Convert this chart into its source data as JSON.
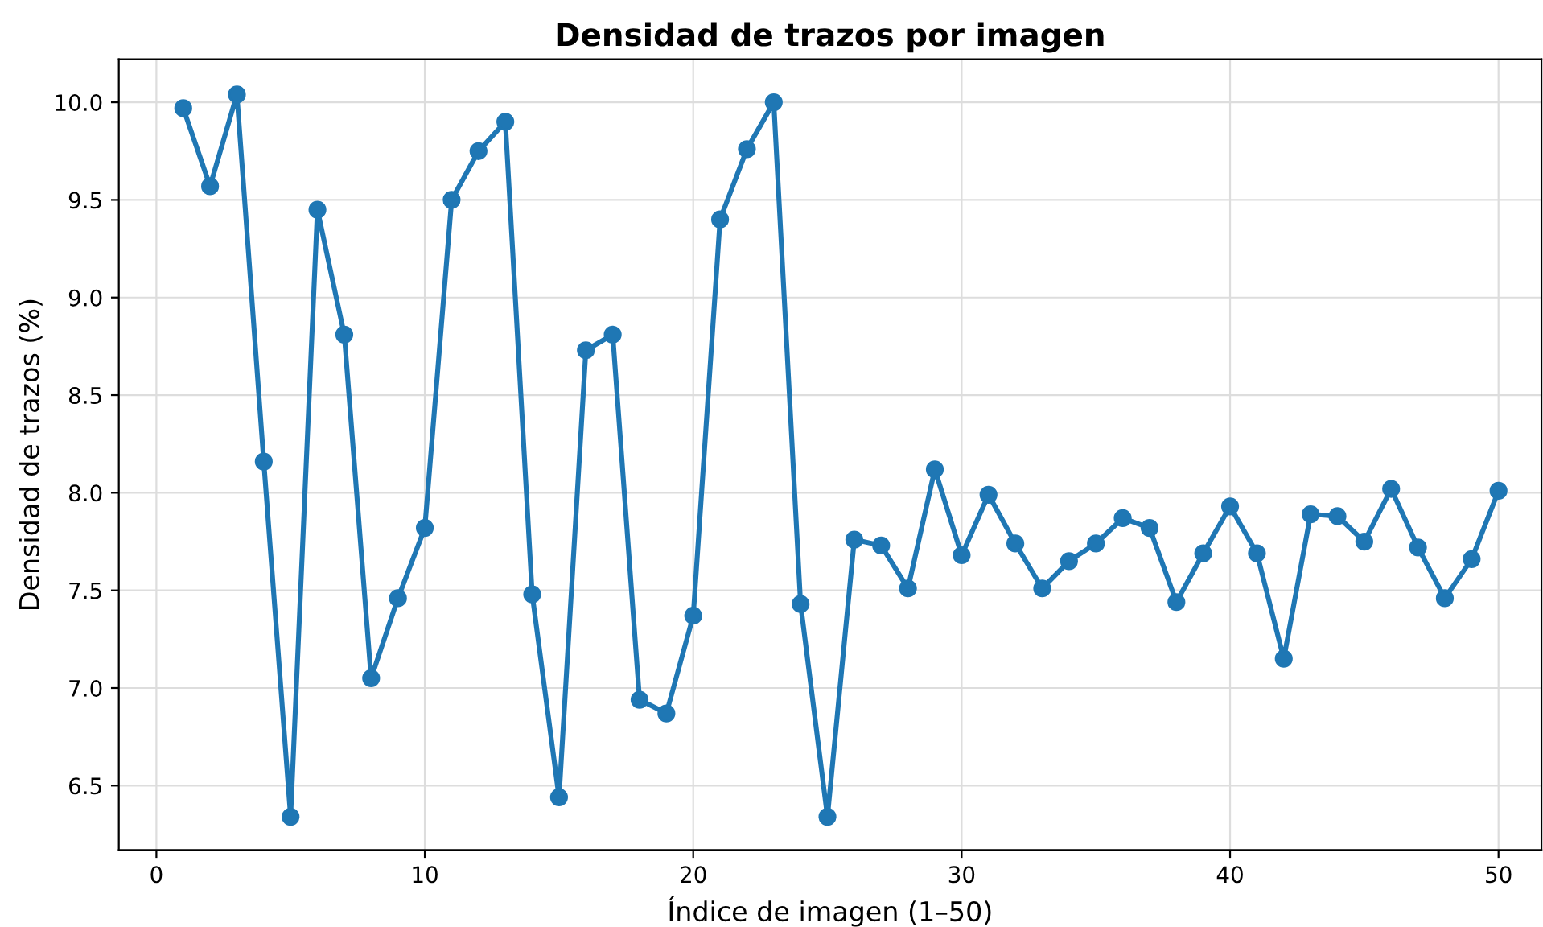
{
  "chart_data": {
    "type": "line",
    "title": "Densidad de trazos por imagen",
    "xlabel": "Índice de imagen (1–50)",
    "ylabel": "Densidad de trazos (%)",
    "x": [
      1,
      2,
      3,
      4,
      5,
      6,
      7,
      8,
      9,
      10,
      11,
      12,
      13,
      14,
      15,
      16,
      17,
      18,
      19,
      20,
      21,
      22,
      23,
      24,
      25,
      26,
      27,
      28,
      29,
      30,
      31,
      32,
      33,
      34,
      35,
      36,
      37,
      38,
      39,
      40,
      41,
      42,
      43,
      44,
      45,
      46,
      47,
      48,
      49,
      50
    ],
    "series": [
      {
        "color": "#1f77b4",
        "values": [
          9.97,
          9.57,
          10.04,
          8.16,
          6.34,
          9.45,
          8.81,
          7.05,
          7.46,
          7.82,
          9.5,
          9.75,
          9.9,
          7.48,
          6.44,
          8.73,
          8.81,
          6.94,
          6.87,
          7.37,
          9.4,
          9.76,
          10.0,
          7.43,
          6.34,
          7.76,
          7.73,
          7.51,
          8.12,
          7.68,
          7.99,
          7.74,
          7.51,
          7.65,
          7.74,
          7.87,
          7.82,
          7.44,
          7.69,
          7.93,
          7.69,
          7.15,
          7.89,
          7.88,
          7.75,
          8.02,
          7.72,
          7.46,
          7.66,
          8.01
        ]
      }
    ],
    "xlim": [
      -1.4,
      51.6
    ],
    "xticks": [
      0,
      10,
      20,
      30,
      40,
      50
    ],
    "ylim": [
      6.17,
      10.22
    ],
    "yticks": [
      {
        "value": 6.5,
        "label": "6.5"
      },
      {
        "value": 7.0,
        "label": "7.0"
      },
      {
        "value": 7.5,
        "label": "7.5"
      },
      {
        "value": 8.0,
        "label": "8.0"
      },
      {
        "value": 8.5,
        "label": "8.5"
      },
      {
        "value": 9.0,
        "label": "9.0"
      },
      {
        "value": 9.5,
        "label": "9.5"
      },
      {
        "value": 10.0,
        "label": "10.0"
      }
    ],
    "grid": true,
    "marker": "circle",
    "line_style": "solid"
  }
}
